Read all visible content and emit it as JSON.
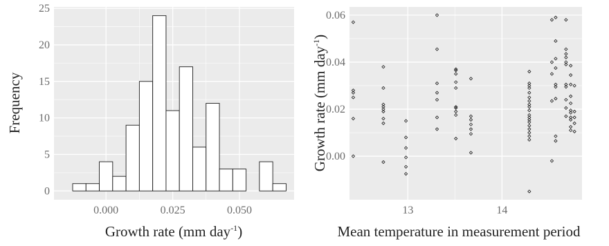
{
  "colors": {
    "panel_bg": "#ebebeb",
    "grid": "#ffffff",
    "bar_fill": "#ffffff",
    "bar_stroke": "#1a1a1a",
    "point": "#1a1a1a"
  },
  "chart_data": [
    {
      "type": "bar",
      "title": "",
      "xlabel": "Growth rate (mm day",
      "xlabel_sup": "-1",
      "xlabel_tail": ")",
      "ylabel": "Frequency",
      "grid": true,
      "bin_width": 0.005,
      "xlim": [
        -0.0195,
        0.0705
      ],
      "ylim": [
        -1.2,
        25.2
      ],
      "xticks": [
        0.0,
        0.025,
        0.05
      ],
      "xtick_labels": [
        "0.000",
        "0.025",
        "0.050"
      ],
      "yticks": [
        0,
        5,
        10,
        15,
        20,
        25
      ],
      "ytick_labels": [
        "0",
        "5",
        "10",
        "15",
        "20",
        "25"
      ],
      "bins": [
        {
          "center": -0.015,
          "count": 0
        },
        {
          "center": -0.01,
          "count": 1
        },
        {
          "center": -0.005,
          "count": 1
        },
        {
          "center": 0.0,
          "count": 4
        },
        {
          "center": 0.005,
          "count": 2
        },
        {
          "center": 0.01,
          "count": 9
        },
        {
          "center": 0.015,
          "count": 15
        },
        {
          "center": 0.02,
          "count": 24
        },
        {
          "center": 0.025,
          "count": 11
        },
        {
          "center": 0.03,
          "count": 17
        },
        {
          "center": 0.035,
          "count": 6
        },
        {
          "center": 0.04,
          "count": 12
        },
        {
          "center": 0.045,
          "count": 3
        },
        {
          "center": 0.05,
          "count": 3
        },
        {
          "center": 0.055,
          "count": 0
        },
        {
          "center": 0.06,
          "count": 4
        },
        {
          "center": 0.065,
          "count": 1
        }
      ]
    },
    {
      "type": "scatter",
      "title": "",
      "xlabel": "Mean temperature in measurement period",
      "ylabel": "Growth rate (mm day",
      "ylabel_sup": "-1",
      "ylabel_tail": ")",
      "grid": true,
      "xlim": [
        12.38,
        14.85
      ],
      "ylim": [
        -0.0185,
        0.0635
      ],
      "xticks": [
        13,
        14
      ],
      "xtick_labels": [
        "13",
        "14"
      ],
      "yticks": [
        0.0,
        0.02,
        0.04,
        0.06
      ],
      "ytick_labels": [
        "0.00",
        "0.02",
        "0.04",
        "0.06"
      ],
      "points": [
        [
          12.42,
          0.057
        ],
        [
          12.42,
          0.028
        ],
        [
          12.42,
          0.027
        ],
        [
          12.42,
          0.025
        ],
        [
          12.42,
          0.016
        ],
        [
          12.42,
          0.0
        ],
        [
          12.74,
          0.038
        ],
        [
          12.74,
          0.029
        ],
        [
          12.74,
          0.022
        ],
        [
          12.74,
          0.021
        ],
        [
          12.74,
          0.02
        ],
        [
          12.74,
          0.019
        ],
        [
          12.74,
          0.016
        ],
        [
          12.74,
          0.014
        ],
        [
          12.74,
          -0.0025
        ],
        [
          12.98,
          0.015
        ],
        [
          12.98,
          0.008
        ],
        [
          12.98,
          0.0035
        ],
        [
          12.98,
          -0.0005
        ],
        [
          12.98,
          -0.0045
        ],
        [
          12.98,
          -0.0075
        ],
        [
          13.31,
          0.06
        ],
        [
          13.31,
          0.0455
        ],
        [
          13.31,
          0.031
        ],
        [
          13.31,
          0.027
        ],
        [
          13.31,
          0.024
        ],
        [
          13.31,
          0.0165
        ],
        [
          13.31,
          0.0115
        ],
        [
          13.51,
          0.037
        ],
        [
          13.51,
          0.0365
        ],
        [
          13.51,
          0.035
        ],
        [
          13.51,
          0.0315
        ],
        [
          13.51,
          0.029
        ],
        [
          13.51,
          0.021
        ],
        [
          13.51,
          0.0205
        ],
        [
          13.51,
          0.019
        ],
        [
          13.51,
          0.0175
        ],
        [
          13.51,
          0.0075
        ],
        [
          13.67,
          0.033
        ],
        [
          13.67,
          0.017
        ],
        [
          13.67,
          0.0155
        ],
        [
          13.67,
          0.0135
        ],
        [
          13.67,
          0.0115
        ],
        [
          13.67,
          0.0095
        ],
        [
          13.67,
          0.0015
        ],
        [
          14.29,
          0.036
        ],
        [
          14.29,
          0.031
        ],
        [
          14.29,
          0.03
        ],
        [
          14.29,
          0.029
        ],
        [
          14.29,
          0.027
        ],
        [
          14.29,
          0.025
        ],
        [
          14.29,
          0.0235
        ],
        [
          14.29,
          0.022
        ],
        [
          14.29,
          0.021
        ],
        [
          14.29,
          0.0195
        ],
        [
          14.29,
          0.0175
        ],
        [
          14.29,
          0.0165
        ],
        [
          14.29,
          0.0155
        ],
        [
          14.29,
          0.0145
        ],
        [
          14.29,
          0.013
        ],
        [
          14.29,
          0.0115
        ],
        [
          14.29,
          0.01
        ],
        [
          14.29,
          0.0085
        ],
        [
          14.29,
          0.007
        ],
        [
          14.29,
          -0.015
        ],
        [
          14.53,
          0.058
        ],
        [
          14.53,
          0.04
        ],
        [
          14.53,
          0.035
        ],
        [
          14.53,
          0.0235
        ],
        [
          14.53,
          -0.002
        ],
        [
          14.57,
          0.059
        ],
        [
          14.57,
          0.049
        ],
        [
          14.57,
          0.0415
        ],
        [
          14.57,
          0.0375
        ],
        [
          14.57,
          0.0305
        ],
        [
          14.57,
          0.0295
        ],
        [
          14.57,
          0.0245
        ],
        [
          14.57,
          0.0085
        ],
        [
          14.57,
          0.0065
        ],
        [
          14.68,
          0.058
        ],
        [
          14.68,
          0.0455
        ],
        [
          14.68,
          0.0435
        ],
        [
          14.68,
          0.042
        ],
        [
          14.68,
          0.04
        ],
        [
          14.68,
          0.039
        ],
        [
          14.68,
          0.0305
        ],
        [
          14.68,
          0.0295
        ],
        [
          14.68,
          0.024
        ],
        [
          14.68,
          0.0205
        ],
        [
          14.68,
          0.017
        ],
        [
          14.73,
          0.0385
        ],
        [
          14.73,
          0.0345
        ],
        [
          14.73,
          0.0305
        ],
        [
          14.73,
          0.0255
        ],
        [
          14.73,
          0.0225
        ],
        [
          14.73,
          0.0195
        ],
        [
          14.73,
          0.0185
        ],
        [
          14.73,
          0.0165
        ],
        [
          14.73,
          0.0155
        ],
        [
          14.73,
          0.0125
        ],
        [
          14.73,
          0.011
        ],
        [
          14.77,
          0.03
        ],
        [
          14.77,
          0.019
        ],
        [
          14.77,
          0.0165
        ],
        [
          14.77,
          0.014
        ],
        [
          14.77,
          0.0105
        ]
      ]
    }
  ]
}
